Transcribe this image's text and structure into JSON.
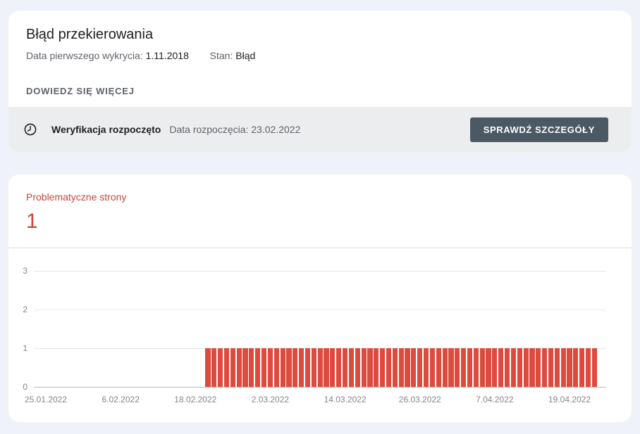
{
  "page": {
    "background": "#eff2fa"
  },
  "error_card": {
    "title": "Błąd przekierowania",
    "first_detected_label": "Data pierwszego wykrycia:",
    "first_detected_value": "1.11.2018",
    "status_label": "Stan:",
    "status_value": "Błąd",
    "learn_more_label": "DOWIEDZ SIĘ WIĘCEJ",
    "validation": {
      "icon": "clock-icon",
      "title": "Weryfikacja rozpoczęto",
      "start_date_label": "Data rozpoczęcia:",
      "start_date_value": "23.02.2022",
      "button_label": "SPRAWDŹ SZCZEGÓŁY"
    }
  },
  "chart_card": {
    "metric_label": "Problematyczne strony",
    "metric_value": "1"
  },
  "chart_data": {
    "type": "bar",
    "title": "Problematyczne strony",
    "xlabel": "",
    "ylabel": "",
    "y_ticks": [
      0,
      1,
      2,
      3
    ],
    "ylim": [
      0,
      3.6
    ],
    "grid": true,
    "legend": false,
    "x_axis_start": "25.01.2022",
    "x_tick_interval_days": 12,
    "x_tick_labels": [
      "25.01.2022",
      "6.02.2022",
      "18.02.2022",
      "2.03.2022",
      "14.03.2022",
      "26.03.2022",
      "7.04.2022",
      "19.04.2022"
    ],
    "bars": {
      "granularity": "day",
      "start_date": "20.02.2022",
      "end_date": "23.04.2022",
      "count": 63,
      "value_per_day": 1
    },
    "colors": {
      "bar": "#dd4b3e",
      "gridline": "#e8e8e8",
      "axis_line": "#b6babe",
      "tick_text": "#80868b",
      "metric_text": "#c7453a"
    }
  },
  "colors": {
    "background": "#eff2fa",
    "card": "#ffffff",
    "band": "#ecedef",
    "button": "#4a5964",
    "text_dark": "#202124",
    "text_gray": "#5f6368",
    "error_red": "#c7453a"
  }
}
